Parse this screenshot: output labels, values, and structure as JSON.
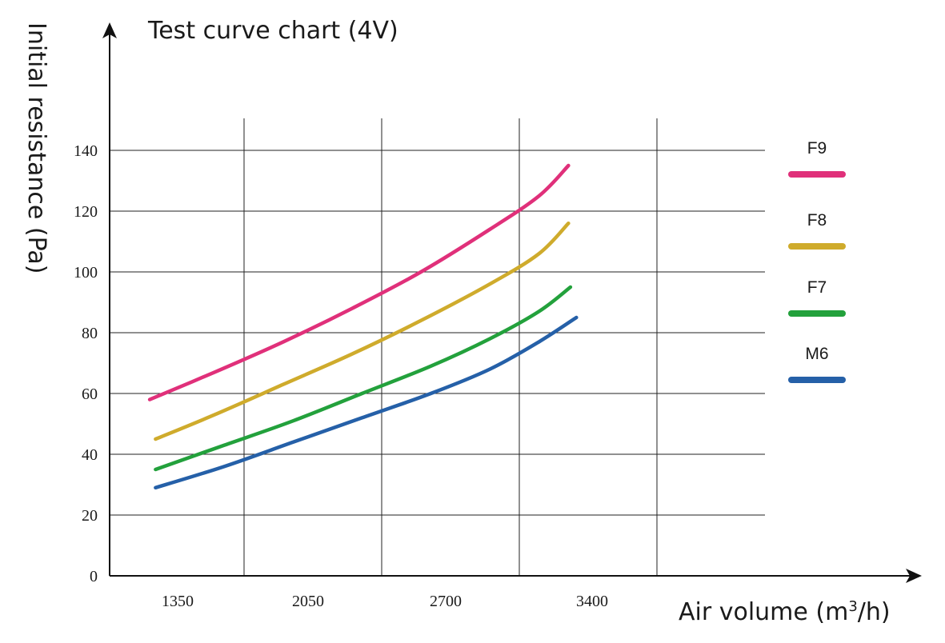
{
  "chart_data": {
    "type": "line",
    "title": "Test curve chart (4V)",
    "xlabel": "Air volume (m",
    "xlabel_sup": "3",
    "xlabel_suffix": "/h)",
    "ylabel": "Initial resistance (Pa)",
    "x_tick_labels": [
      "1350",
      "2050",
      "2700",
      "3400"
    ],
    "y_ticks": [
      0,
      20,
      40,
      60,
      80,
      100,
      120,
      140
    ],
    "ylim": [
      0,
      140
    ],
    "grid": true,
    "legend_position": "right",
    "series": [
      {
        "name": "F9",
        "color": "#e0307a",
        "points": [
          [
            1270,
            58
          ],
          [
            1600,
            67
          ],
          [
            1950,
            77
          ],
          [
            2300,
            88
          ],
          [
            2650,
            100
          ],
          [
            3000,
            114
          ],
          [
            3250,
            125
          ],
          [
            3400,
            135
          ]
        ]
      },
      {
        "name": "F8",
        "color": "#cfab2c",
        "points": [
          [
            1300,
            45
          ],
          [
            1600,
            53
          ],
          [
            1950,
            63
          ],
          [
            2300,
            73
          ],
          [
            2650,
            84
          ],
          [
            3000,
            96
          ],
          [
            3250,
            106
          ],
          [
            3400,
            116
          ]
        ]
      },
      {
        "name": "F7",
        "color": "#23a13c",
        "points": [
          [
            1300,
            35
          ],
          [
            1650,
            43
          ],
          [
            2000,
            51
          ],
          [
            2350,
            60
          ],
          [
            2700,
            69
          ],
          [
            3000,
            78
          ],
          [
            3250,
            87
          ],
          [
            3410,
            95
          ]
        ]
      },
      {
        "name": "M6",
        "color": "#2560a8",
        "points": [
          [
            1300,
            29
          ],
          [
            1650,
            36
          ],
          [
            2000,
            44
          ],
          [
            2350,
            52
          ],
          [
            2700,
            60
          ],
          [
            3000,
            68
          ],
          [
            3250,
            77
          ],
          [
            3440,
            85
          ]
        ]
      }
    ]
  }
}
